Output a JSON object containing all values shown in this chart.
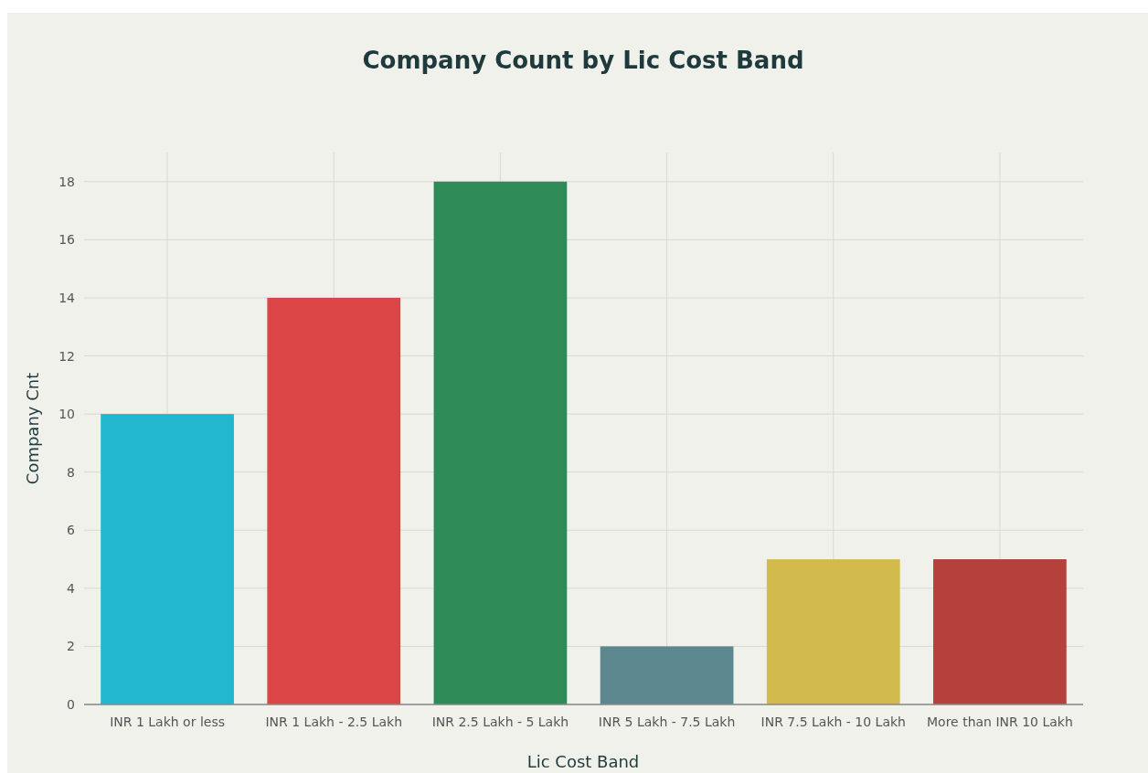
{
  "chart_data": {
    "type": "bar",
    "title": "Company Count by Lic Cost Band",
    "xlabel": "Lic Cost Band",
    "ylabel": "Company Cnt",
    "categories": [
      "INR 1 Lakh or less",
      "INR 1 Lakh - 2.5 Lakh",
      "INR 2.5 Lakh - 5 Lakh",
      "INR 5 Lakh - 7.5 Lakh",
      "INR 7.5 Lakh - 10 Lakh",
      "More than INR 10 Lakh"
    ],
    "values": [
      10,
      14,
      18,
      2,
      5,
      5
    ],
    "colors": [
      "#21b8cf",
      "#db4545",
      "#2e8b57",
      "#5d878f",
      "#d2ba4c",
      "#b4413c"
    ],
    "ylim": [
      0,
      19
    ],
    "yticks": [
      0,
      2,
      4,
      6,
      8,
      10,
      12,
      14,
      16,
      18
    ],
    "grid": true
  }
}
